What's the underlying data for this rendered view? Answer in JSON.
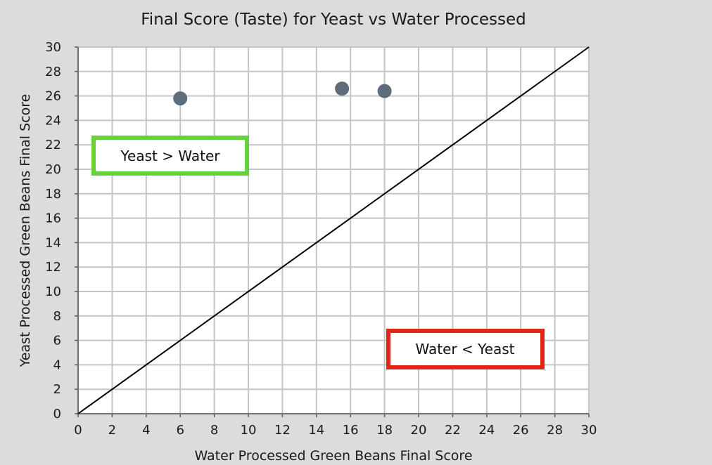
{
  "chart_data": {
    "type": "scatter",
    "title": "Final Score (Taste) for Yeast vs Water Processed",
    "xlabel": "Water Processed Green Beans Final Score",
    "ylabel": "Yeast Processed Green Beans Final Score",
    "xlim": [
      0,
      30
    ],
    "ylim": [
      0,
      30
    ],
    "x_ticks": [
      "0",
      "2",
      "4",
      "6",
      "8",
      "10",
      "12",
      "14",
      "16",
      "18",
      "20",
      "22",
      "24",
      "26",
      "28",
      "30"
    ],
    "y_ticks": [
      "0",
      "2",
      "4",
      "6",
      "8",
      "10",
      "12",
      "14",
      "16",
      "18",
      "20",
      "22",
      "24",
      "26",
      "28",
      "30"
    ],
    "grid": true,
    "series": [
      {
        "points": [
          {
            "x": 6,
            "y": 25.8
          },
          {
            "x": 15.5,
            "y": 26.6
          },
          {
            "x": 18,
            "y": 26.4
          }
        ],
        "color": "#5d6b7a"
      }
    ],
    "reference_line": {
      "from": [
        0,
        0
      ],
      "to": [
        30,
        30
      ],
      "color": "#000000"
    },
    "annotations": [
      {
        "text": "Yeast > Water",
        "border_color": "#66d13a"
      },
      {
        "text": "Water < Yeast",
        "border_color": "#e0231b"
      }
    ]
  }
}
